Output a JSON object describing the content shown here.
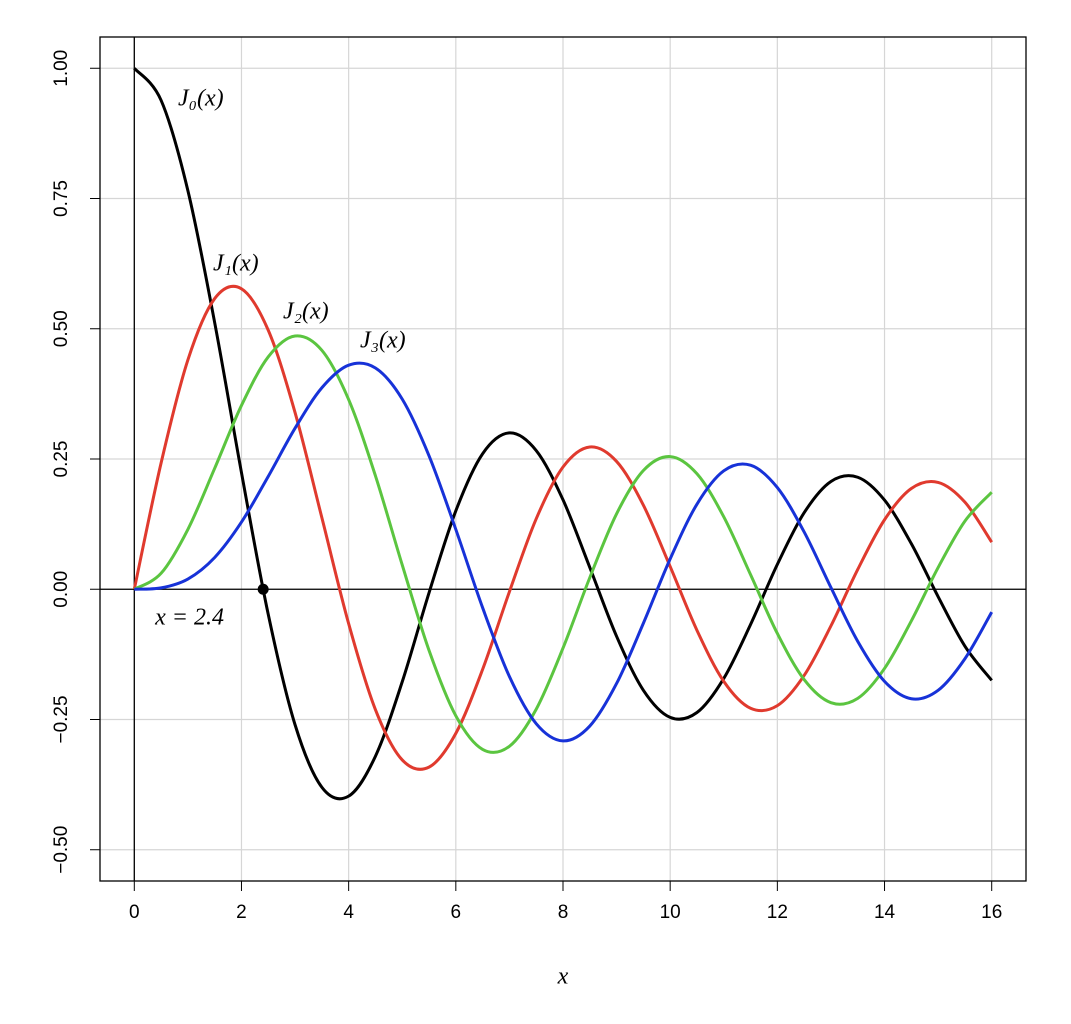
{
  "chart_data": {
    "type": "line",
    "x_label": "x",
    "x": [
      0,
      0.5,
      1,
      1.5,
      2,
      2.5,
      3,
      3.5,
      4,
      4.5,
      5,
      5.5,
      6,
      6.5,
      7,
      7.5,
      8,
      8.5,
      9,
      9.5,
      10,
      10.5,
      11,
      11.5,
      12,
      12.5,
      13,
      13.5,
      14,
      14.5,
      15,
      15.5,
      16
    ],
    "series": [
      {
        "name": "J₀(x)",
        "color": "#000000",
        "values": [
          1,
          0.9385,
          0.7652,
          0.5118,
          0.2239,
          -0.0484,
          -0.2601,
          -0.3801,
          -0.3971,
          -0.3205,
          -0.1776,
          -0.0068,
          0.1506,
          0.2601,
          0.3001,
          0.2663,
          0.1717,
          0.0419,
          -0.0903,
          -0.1939,
          -0.2459,
          -0.2366,
          -0.1712,
          -0.0677,
          0.0477,
          0.1469,
          0.2069,
          0.215,
          0.1711,
          0.0875,
          -0.0142,
          -0.1092,
          -0.1749
        ]
      },
      {
        "name": "J₁(x)",
        "color": "#e03a2e",
        "values": [
          0,
          0.2423,
          0.4401,
          0.5579,
          0.5767,
          0.4971,
          0.3391,
          0.1374,
          -0.066,
          -0.2311,
          -0.3276,
          -0.3414,
          -0.2767,
          -0.1538,
          -0.0047,
          0.1352,
          0.2346,
          0.2731,
          0.2453,
          0.1613,
          0.0435,
          -0.0789,
          -0.1768,
          -0.2284,
          -0.2234,
          -0.1655,
          -0.0703,
          0.038,
          0.1334,
          0.1934,
          0.2051,
          0.1672,
          0.0904
        ]
      },
      {
        "name": "J₂(x)",
        "color": "#5bc540",
        "values": [
          0,
          0.0306,
          0.1149,
          0.2321,
          0.3528,
          0.4461,
          0.4861,
          0.4586,
          0.3641,
          0.2178,
          0.0466,
          -0.1173,
          -0.2429,
          -0.3074,
          -0.3014,
          -0.2303,
          -0.113,
          0.0223,
          0.1448,
          0.2279,
          0.2546,
          0.2216,
          0.139,
          0.028,
          -0.0849,
          -0.1734,
          -0.2177,
          -0.2094,
          -0.152,
          -0.0608,
          0.0416,
          0.1308,
          0.1862
        ]
      },
      {
        "name": "J₃(x)",
        "color": "#1732d8",
        "values": [
          0,
          0.0026,
          0.0196,
          0.061,
          0.1289,
          0.2167,
          0.3091,
          0.3867,
          0.4301,
          0.4247,
          0.3649,
          0.2561,
          0.1148,
          -0.0354,
          -0.1675,
          -0.258,
          -0.2911,
          -0.2626,
          -0.1809,
          -0.0653,
          0.0583,
          0.1633,
          0.2273,
          0.2381,
          0.1951,
          0.11,
          0.0033,
          -0.1,
          -0.1768,
          -0.2102,
          -0.194,
          -0.1334,
          -0.0438
        ]
      }
    ],
    "annotation": {
      "text": "x = 2.4",
      "x": 2.4048,
      "y": 0
    },
    "xlim": [
      -0.64,
      16.64
    ],
    "xticks": [
      0,
      2,
      4,
      6,
      8,
      10,
      12,
      14,
      16
    ],
    "ylim": [
      -0.56,
      1.06
    ],
    "yticks": [
      {
        "value": -0.5,
        "label": "−0.50"
      },
      {
        "value": -0.25,
        "label": "−0.25"
      },
      {
        "value": 0,
        "label": "0.00"
      },
      {
        "value": 0.25,
        "label": "0.25"
      },
      {
        "value": 0.5,
        "label": "0.50"
      },
      {
        "value": 0.75,
        "label": "0.75"
      },
      {
        "value": 1,
        "label": "1.00"
      }
    ],
    "grid": true
  }
}
